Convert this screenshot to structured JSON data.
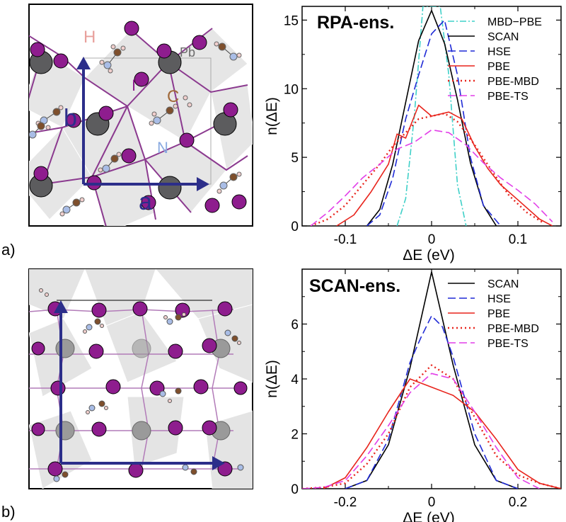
{
  "panels": [
    {
      "label": "a)",
      "structure_labels": {
        "h": "H",
        "pb": "Pb",
        "i": "I",
        "c": "C",
        "n": "N",
        "b": "b",
        "a": "a"
      }
    },
    {
      "label": "b)"
    }
  ],
  "colors": {
    "pb": "#5c5c5e",
    "i": "#8e1d8e",
    "c": "#7e4f2c",
    "n": "#a9bde6",
    "h": "#f1cfcd",
    "bond": "#8b3a8f",
    "arrow": "#2c2e8a",
    "poly": "#e4e4e4",
    "label_h": "#e8a09c",
    "label_pb": "#6b6b6b",
    "label_i": "#8e1d8e",
    "label_c": "#a0693a",
    "label_n": "#8aaae0",
    "series": {
      "MBD-PBE": "#3fd0c8",
      "SCAN": "#000000",
      "HSE": "#1f2ad6",
      "PBE": "#e8241c",
      "PBE-MBD": "#e8241c",
      "PBE-TS": "#e23ee8"
    }
  },
  "chart_data": [
    {
      "type": "line",
      "title": "RPA-ens.",
      "xlabel": "ΔE (eV)",
      "ylabel": "n(ΔE)",
      "xlim": [
        -0.15,
        0.15
      ],
      "ylim": [
        0,
        16
      ],
      "xticks": [
        -0.1,
        0,
        0.1
      ],
      "xtick_labels": [
        "-0.1",
        "0",
        "0.1"
      ],
      "yticks": [
        0,
        5,
        10,
        15
      ],
      "ytick_labels": [
        "0",
        "5",
        "10",
        "15"
      ],
      "legend": "top-right",
      "grid": false,
      "series": [
        {
          "name": "MBD−PBE",
          "style": "dashdot",
          "color": "#3fd0c8",
          "x": [
            -0.04,
            -0.03,
            -0.02,
            -0.01,
            0.0,
            0.01,
            0.02,
            0.03,
            0.04
          ],
          "y": [
            0,
            2,
            8,
            16,
            16,
            16,
            11,
            3,
            0
          ]
        },
        {
          "name": "SCAN",
          "style": "solid",
          "color": "#000000",
          "x": [
            -0.075,
            -0.06,
            -0.045,
            -0.03,
            -0.015,
            0.0,
            0.015,
            0.03,
            0.045,
            0.06,
            0.075
          ],
          "y": [
            0,
            1.2,
            4.5,
            9.0,
            13.5,
            15.7,
            13.3,
            9.2,
            4.6,
            1.5,
            0
          ]
        },
        {
          "name": "HSE",
          "style": "dashed",
          "color": "#1f2ad6",
          "x": [
            -0.075,
            -0.06,
            -0.045,
            -0.03,
            -0.015,
            0.0,
            0.015,
            0.03,
            0.045,
            0.06,
            0.08
          ],
          "y": [
            0,
            0.8,
            3.5,
            7.8,
            11.0,
            14.0,
            15.0,
            11.0,
            5.0,
            1.5,
            0
          ]
        },
        {
          "name": "PBE",
          "style": "solid",
          "color": "#e8241c",
          "x": [
            -0.11,
            -0.09,
            -0.07,
            -0.05,
            -0.04,
            -0.03,
            -0.015,
            0.0,
            0.02,
            0.035,
            0.05,
            0.065,
            0.08,
            0.1,
            0.125,
            0.14
          ],
          "y": [
            0,
            0.8,
            2.5,
            4.5,
            6.7,
            6.4,
            8.8,
            8.0,
            8.3,
            7.8,
            5.8,
            4.2,
            3.0,
            1.9,
            0.5,
            0
          ]
        },
        {
          "name": "PBE-MBD",
          "style": "dotted",
          "color": "#e8241c",
          "x": [
            -0.14,
            -0.12,
            -0.1,
            -0.08,
            -0.06,
            -0.045,
            -0.03,
            -0.015,
            0.0,
            0.015,
            0.03,
            0.05,
            0.07,
            0.09,
            0.11,
            0.13
          ],
          "y": [
            0,
            0.5,
            1.5,
            3.0,
            4.5,
            5.8,
            6.8,
            7.8,
            8.0,
            8.2,
            7.6,
            5.9,
            4.0,
            2.2,
            1.0,
            0.2
          ]
        },
        {
          "name": "PBE-TS",
          "style": "dashed",
          "color": "#e23ee8",
          "x": [
            -0.14,
            -0.12,
            -0.1,
            -0.08,
            -0.06,
            -0.04,
            -0.02,
            0.0,
            0.02,
            0.04,
            0.06,
            0.08,
            0.1,
            0.12,
            0.14
          ],
          "y": [
            0,
            1.0,
            2.2,
            3.5,
            4.5,
            5.6,
            6.1,
            7.0,
            6.8,
            5.9,
            4.6,
            3.5,
            2.6,
            1.6,
            0.3
          ]
        }
      ]
    },
    {
      "type": "line",
      "title": "SCAN-ens.",
      "xlabel": "ΔE (eV)",
      "ylabel": "n(ΔE)",
      "xlim": [
        -0.3,
        0.3
      ],
      "ylim": [
        0,
        8
      ],
      "xticks": [
        -0.2,
        0,
        0.2
      ],
      "xtick_labels": [
        "-0.2",
        "0",
        "0.2"
      ],
      "yticks": [
        0,
        2,
        4,
        6
      ],
      "ytick_labels": [
        "0",
        "2",
        "4",
        "6"
      ],
      "legend": "top-right",
      "grid": false,
      "series": [
        {
          "name": "SCAN",
          "style": "solid",
          "color": "#000000",
          "x": [
            -0.2,
            -0.15,
            -0.1,
            -0.05,
            0.0,
            0.05,
            0.1,
            0.15,
            0.2
          ],
          "y": [
            0,
            0.3,
            1.6,
            4.4,
            7.9,
            4.5,
            1.6,
            0.3,
            0
          ]
        },
        {
          "name": "HSE",
          "style": "dashed",
          "color": "#1f2ad6",
          "x": [
            -0.2,
            -0.15,
            -0.1,
            -0.05,
            -0.025,
            0.0,
            0.025,
            0.05,
            0.1,
            0.15,
            0.2
          ],
          "y": [
            0,
            0.3,
            1.8,
            4.6,
            5.5,
            6.3,
            5.9,
            4.8,
            2.0,
            0.3,
            0
          ]
        },
        {
          "name": "PBE",
          "style": "solid",
          "color": "#e8241c",
          "x": [
            -0.25,
            -0.2,
            -0.15,
            -0.1,
            -0.05,
            0.0,
            0.05,
            0.1,
            0.15,
            0.2,
            0.25,
            0.3
          ],
          "y": [
            0,
            0.4,
            1.5,
            2.8,
            4.0,
            3.7,
            3.4,
            2.8,
            1.8,
            0.7,
            0.2,
            0
          ]
        },
        {
          "name": "PBE-MBD",
          "style": "dotted",
          "color": "#e8241c",
          "x": [
            -0.3,
            -0.25,
            -0.2,
            -0.15,
            -0.1,
            -0.05,
            0.0,
            0.05,
            0.1,
            0.15,
            0.2,
            0.25,
            0.3
          ],
          "y": [
            0,
            0.05,
            0.2,
            0.9,
            2.0,
            3.7,
            4.5,
            4.0,
            2.6,
            1.2,
            0.5,
            0.2,
            0
          ]
        },
        {
          "name": "PBE-TS",
          "style": "dashed",
          "color": "#e23ee8",
          "x": [
            -0.3,
            -0.25,
            -0.2,
            -0.15,
            -0.1,
            -0.05,
            0.0,
            0.05,
            0.1,
            0.15,
            0.2,
            0.25
          ],
          "y": [
            0,
            0.05,
            0.3,
            1.2,
            2.3,
            3.5,
            4.2,
            4.0,
            2.8,
            1.5,
            0.4,
            0
          ]
        }
      ]
    }
  ]
}
